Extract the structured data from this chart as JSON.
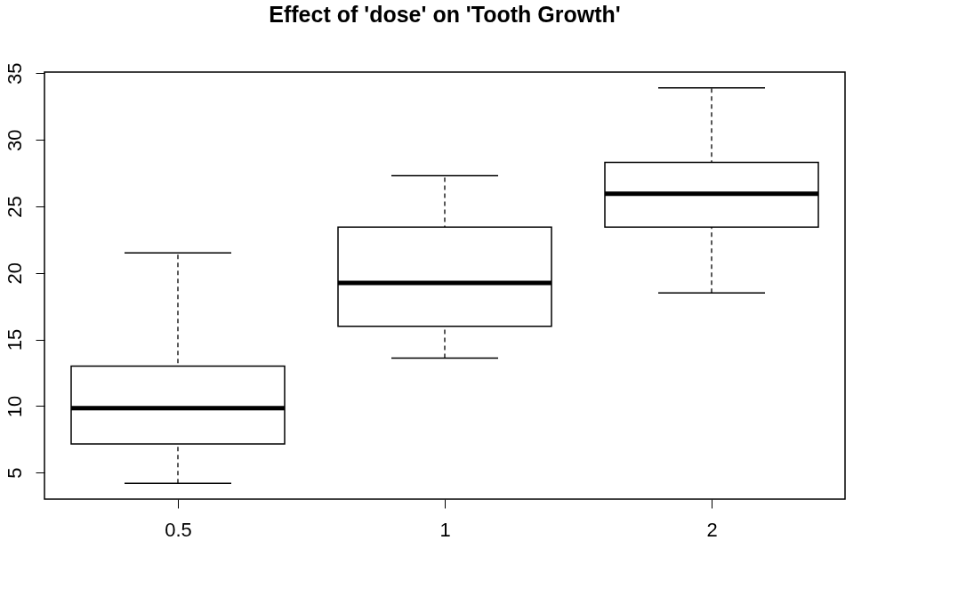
{
  "chart_data": {
    "type": "box",
    "title": "Effect of 'dose' on 'Tooth Growth'",
    "categories": [
      "0.5",
      "1",
      "2"
    ],
    "boxes": [
      {
        "low": 4.2,
        "q1": 7.15,
        "median": 9.85,
        "q3": 13.0,
        "high": 21.5
      },
      {
        "low": 13.6,
        "q1": 16.0,
        "median": 19.25,
        "q3": 23.45,
        "high": 27.3
      },
      {
        "low": 18.5,
        "q1": 23.45,
        "median": 25.95,
        "q3": 28.3,
        "high": 33.9
      }
    ],
    "ylim": [
      3.01,
      35.09
    ],
    "yticks": [
      5,
      10,
      15,
      20,
      25,
      30,
      35
    ],
    "grid": false
  }
}
